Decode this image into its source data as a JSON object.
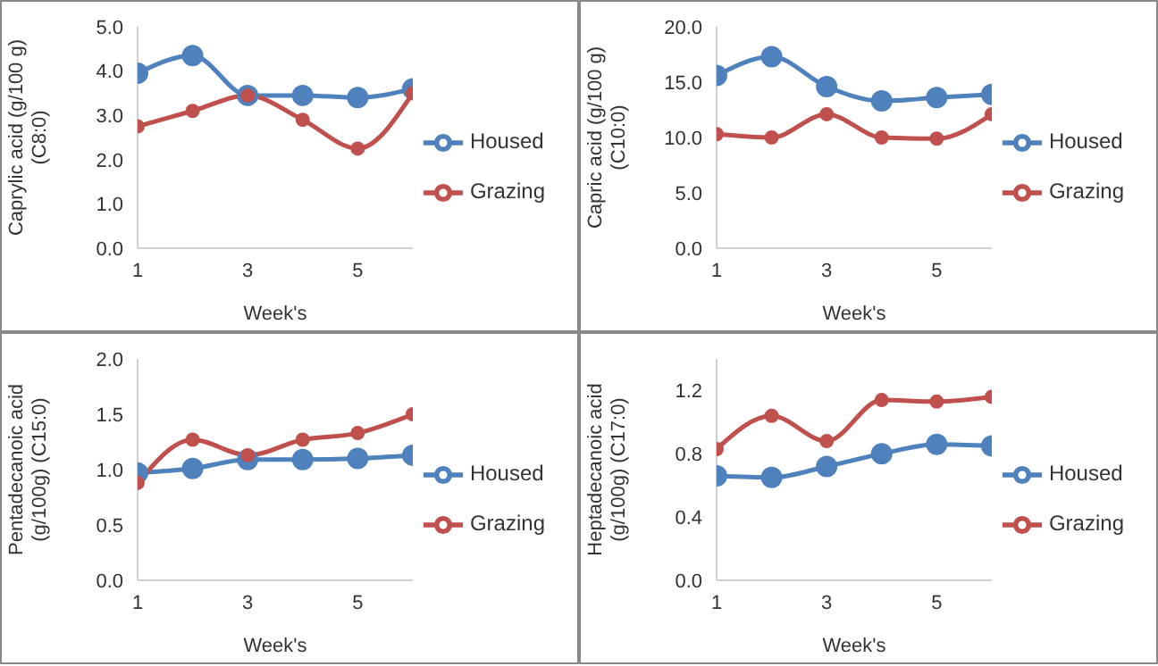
{
  "chart_data": [
    {
      "type": "line",
      "xlabel": "Week's",
      "ylabel": "Caprylic acid (g/100 g) (C8:0)",
      "x": [
        1,
        2,
        3,
        4,
        5,
        6
      ],
      "xlim": [
        1,
        6
      ],
      "xticks": [
        1,
        3,
        5
      ],
      "ylim": [
        0,
        5
      ],
      "yticks": [
        {
          "value": 0,
          "label": "0.0"
        },
        {
          "value": 1,
          "label": "1.0"
        },
        {
          "value": 2,
          "label": "2.0"
        },
        {
          "value": 3,
          "label": "3.0"
        },
        {
          "value": 4,
          "label": "4.0"
        },
        {
          "value": 5,
          "label": "5.0"
        }
      ],
      "grid": false,
      "legend": "right",
      "marker": "circle",
      "line_style": "solid",
      "series": [
        {
          "name": "Housed",
          "color": "#4f81bd",
          "values": [
            3.95,
            4.35,
            3.45,
            3.45,
            3.4,
            3.6
          ]
        },
        {
          "name": "Grazing",
          "color": "#c0504d",
          "values": [
            2.75,
            3.1,
            3.45,
            2.9,
            2.25,
            3.5
          ]
        }
      ]
    },
    {
      "type": "line",
      "xlabel": "Week's",
      "ylabel": "Capric acid (g/100 g) (C10:0)",
      "x": [
        1,
        2,
        3,
        4,
        5,
        6
      ],
      "xlim": [
        1,
        6
      ],
      "xticks": [
        1,
        3,
        5
      ],
      "ylim": [
        0,
        20
      ],
      "yticks": [
        {
          "value": 0,
          "label": "0.0"
        },
        {
          "value": 5,
          "label": "5.0"
        },
        {
          "value": 10,
          "label": "10.0"
        },
        {
          "value": 15,
          "label": "15.0"
        },
        {
          "value": 20,
          "label": "20.0"
        }
      ],
      "grid": false,
      "legend": "right",
      "marker": "circle",
      "line_style": "solid",
      "series": [
        {
          "name": "Housed",
          "color": "#4f81bd",
          "values": [
            15.6,
            17.3,
            14.6,
            13.3,
            13.6,
            13.9
          ]
        },
        {
          "name": "Grazing",
          "color": "#c0504d",
          "values": [
            10.3,
            10.0,
            12.1,
            10.0,
            9.9,
            12.1
          ]
        }
      ]
    },
    {
      "type": "line",
      "xlabel": "Week's",
      "ylabel": "Pentadecanoic acid (g/100g) (C15:0)",
      "x": [
        1,
        2,
        3,
        4,
        5,
        6
      ],
      "xlim": [
        1,
        6
      ],
      "xticks": [
        1,
        3,
        5
      ],
      "ylim": [
        0,
        2
      ],
      "yticks": [
        {
          "value": 0,
          "label": "0.0"
        },
        {
          "value": 0.5,
          "label": "0.5"
        },
        {
          "value": 1,
          "label": "1.0"
        },
        {
          "value": 1.5,
          "label": "1.5"
        },
        {
          "value": 2,
          "label": "2.0"
        }
      ],
      "grid": false,
      "legend": "right",
      "marker": "circle",
      "line_style": "solid",
      "series": [
        {
          "name": "Housed",
          "color": "#4f81bd",
          "values": [
            0.97,
            1.01,
            1.09,
            1.09,
            1.1,
            1.13
          ]
        },
        {
          "name": "Grazing",
          "color": "#c0504d",
          "values": [
            0.88,
            1.27,
            1.13,
            1.27,
            1.33,
            1.5
          ]
        }
      ]
    },
    {
      "type": "line",
      "xlabel": "Week's",
      "ylabel": "Heptadecanoic acid (g/100g) (C17:0)",
      "x": [
        1,
        2,
        3,
        4,
        5,
        6
      ],
      "xlim": [
        1,
        6
      ],
      "xticks": [
        1,
        3,
        5
      ],
      "ylim": [
        0,
        1.4
      ],
      "yticks": [
        {
          "value": 0,
          "label": "0.0"
        },
        {
          "value": 0.4,
          "label": "0.4"
        },
        {
          "value": 0.8,
          "label": "0.8"
        },
        {
          "value": 1.2,
          "label": "1.2"
        }
      ],
      "grid": false,
      "legend": "right",
      "marker": "circle",
      "line_style": "solid",
      "series": [
        {
          "name": "Housed",
          "color": "#4f81bd",
          "values": [
            0.66,
            0.65,
            0.72,
            0.8,
            0.86,
            0.85
          ]
        },
        {
          "name": "Grazing",
          "color": "#c0504d",
          "values": [
            0.83,
            1.04,
            0.88,
            1.14,
            1.13,
            1.16
          ]
        }
      ]
    }
  ]
}
